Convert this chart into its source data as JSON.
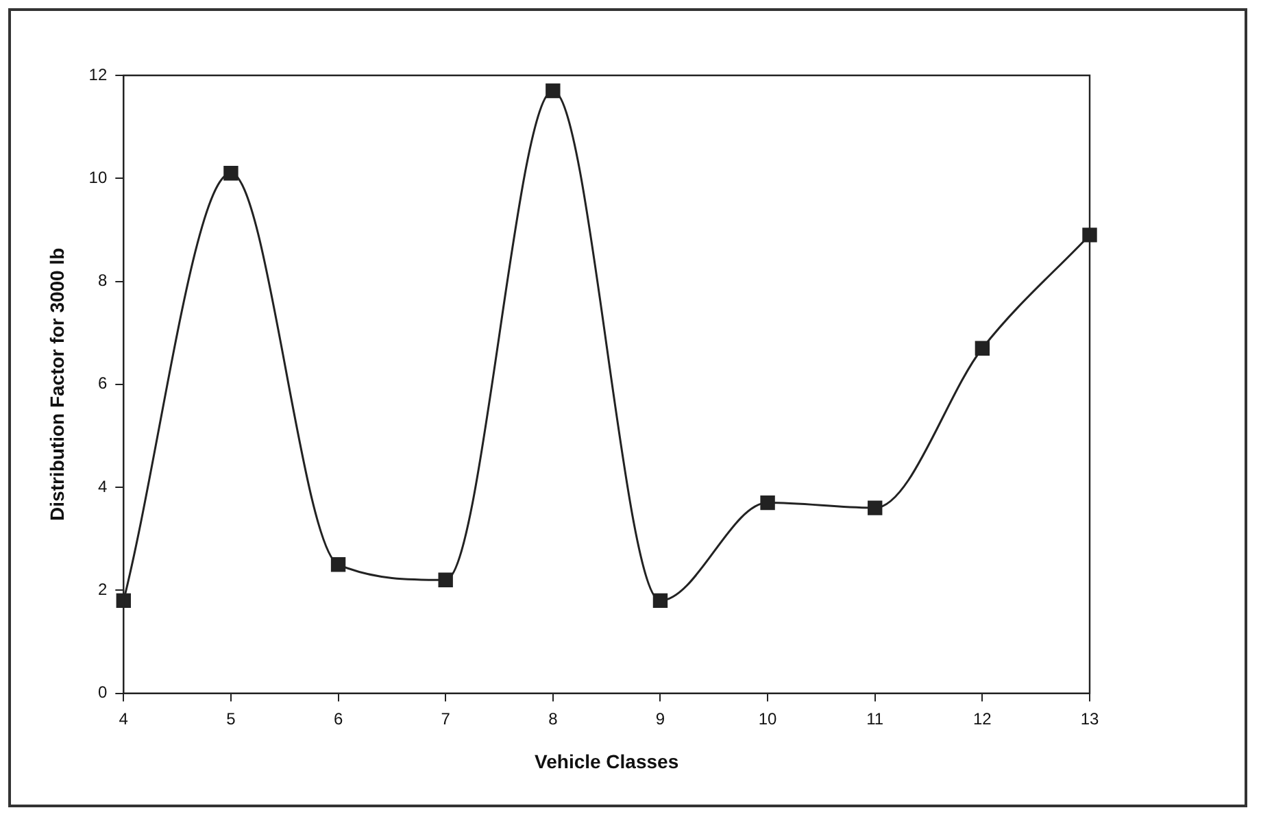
{
  "chart_data": {
    "type": "line",
    "xlabel": "Vehicle Classes",
    "ylabel": "Distribution Factor for 3000 lb",
    "x": [
      4,
      5,
      6,
      7,
      8,
      9,
      10,
      11,
      12,
      13
    ],
    "series": [
      {
        "color": "#222222",
        "values": [
          1.8,
          10.1,
          2.5,
          2.2,
          11.7,
          1.8,
          3.7,
          3.6,
          6.7,
          8.9
        ]
      }
    ],
    "xlim": [
      4,
      13
    ],
    "xticks": [
      4,
      5,
      6,
      7,
      8,
      9,
      10,
      11,
      12,
      13
    ],
    "ylim": [
      0,
      12
    ],
    "yticks": [
      0,
      2,
      4,
      6,
      8,
      10,
      12
    ],
    "grid": false,
    "legend": false,
    "marker": "square",
    "line_style": "solid"
  }
}
